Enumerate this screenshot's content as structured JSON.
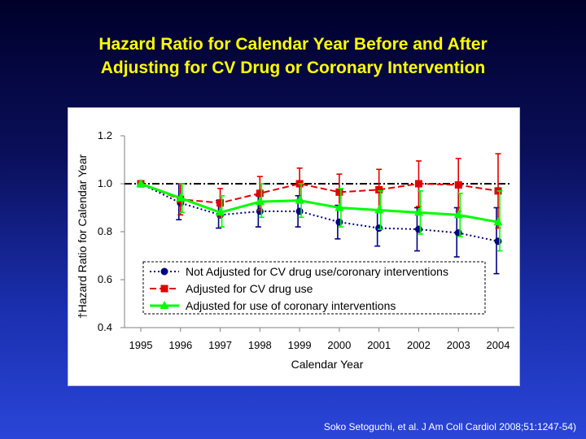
{
  "slide": {
    "title_line1": "Hazard Ratio for Calendar Year Before and After",
    "title_line2": "Adjusting for CV Drug or Coronary Intervention",
    "citation": "Soko Setoguchi, et al. J Am Coll Cardiol 2008;51:1247-54)",
    "background_color": "#1a2fae",
    "title_color": "#ffff00"
  },
  "chart_data": {
    "type": "line",
    "title": "",
    "xlabel": "Calendar Year",
    "ylabel": "†Hazard Ratio for Calendar Year",
    "x": [
      1995,
      1996,
      1997,
      1998,
      1999,
      2000,
      2001,
      2002,
      2003,
      2004
    ],
    "x_tick_labels": [
      "1995",
      "1996",
      "1997",
      "1998",
      "1999",
      "2000",
      "2001",
      "2002",
      "2003",
      "2004"
    ],
    "ylim": [
      0.4,
      1.2
    ],
    "y_ticks": [
      0.4,
      0.6,
      0.8,
      1.0,
      1.2
    ],
    "y_tick_labels": [
      "0.4",
      "0.6",
      "0.8",
      "1.0",
      "1.2"
    ],
    "reference_line": {
      "y": 1.0,
      "style": "dash-dot",
      "color": "#000000"
    },
    "grid": false,
    "legend_position": "bottom-left",
    "series": [
      {
        "name": "Not Adjusted for CV drug use/coronary interventions",
        "color": "#000080",
        "marker": "circle",
        "line_style": "dotted",
        "values": [
          1.0,
          0.92,
          0.87,
          0.885,
          0.885,
          0.84,
          0.815,
          0.81,
          0.795,
          0.76
        ],
        "error_upper": [
          1.0,
          1.0,
          0.93,
          0.95,
          0.95,
          0.91,
          0.89,
          0.9,
          0.9,
          0.9
        ],
        "error_lower": [
          1.0,
          0.85,
          0.815,
          0.82,
          0.82,
          0.77,
          0.74,
          0.72,
          0.695,
          0.625
        ]
      },
      {
        "name": "Adjusted for CV drug use",
        "color": "#e00000",
        "marker": "square",
        "line_style": "dashed",
        "values": [
          1.0,
          0.935,
          0.92,
          0.96,
          1.0,
          0.965,
          0.975,
          1.0,
          0.995,
          0.97
        ],
        "error_upper": [
          1.0,
          1.0,
          0.98,
          1.03,
          1.065,
          1.04,
          1.06,
          1.095,
          1.105,
          1.125
        ],
        "error_lower": [
          1.0,
          0.87,
          0.86,
          0.89,
          0.935,
          0.89,
          0.89,
          0.905,
          0.885,
          0.815
        ]
      },
      {
        "name": "Adjusted for use of coronary interventions",
        "color": "#00ff00",
        "marker": "triangle",
        "line_style": "solid",
        "values": [
          1.0,
          0.94,
          0.88,
          0.925,
          0.93,
          0.9,
          0.89,
          0.88,
          0.87,
          0.84
        ],
        "error_upper": [
          1.0,
          1.0,
          0.95,
          1.0,
          1.0,
          0.98,
          0.97,
          0.97,
          0.96,
          0.97
        ],
        "error_lower": [
          1.0,
          0.88,
          0.82,
          0.86,
          0.86,
          0.82,
          0.81,
          0.79,
          0.78,
          0.72
        ]
      }
    ]
  }
}
